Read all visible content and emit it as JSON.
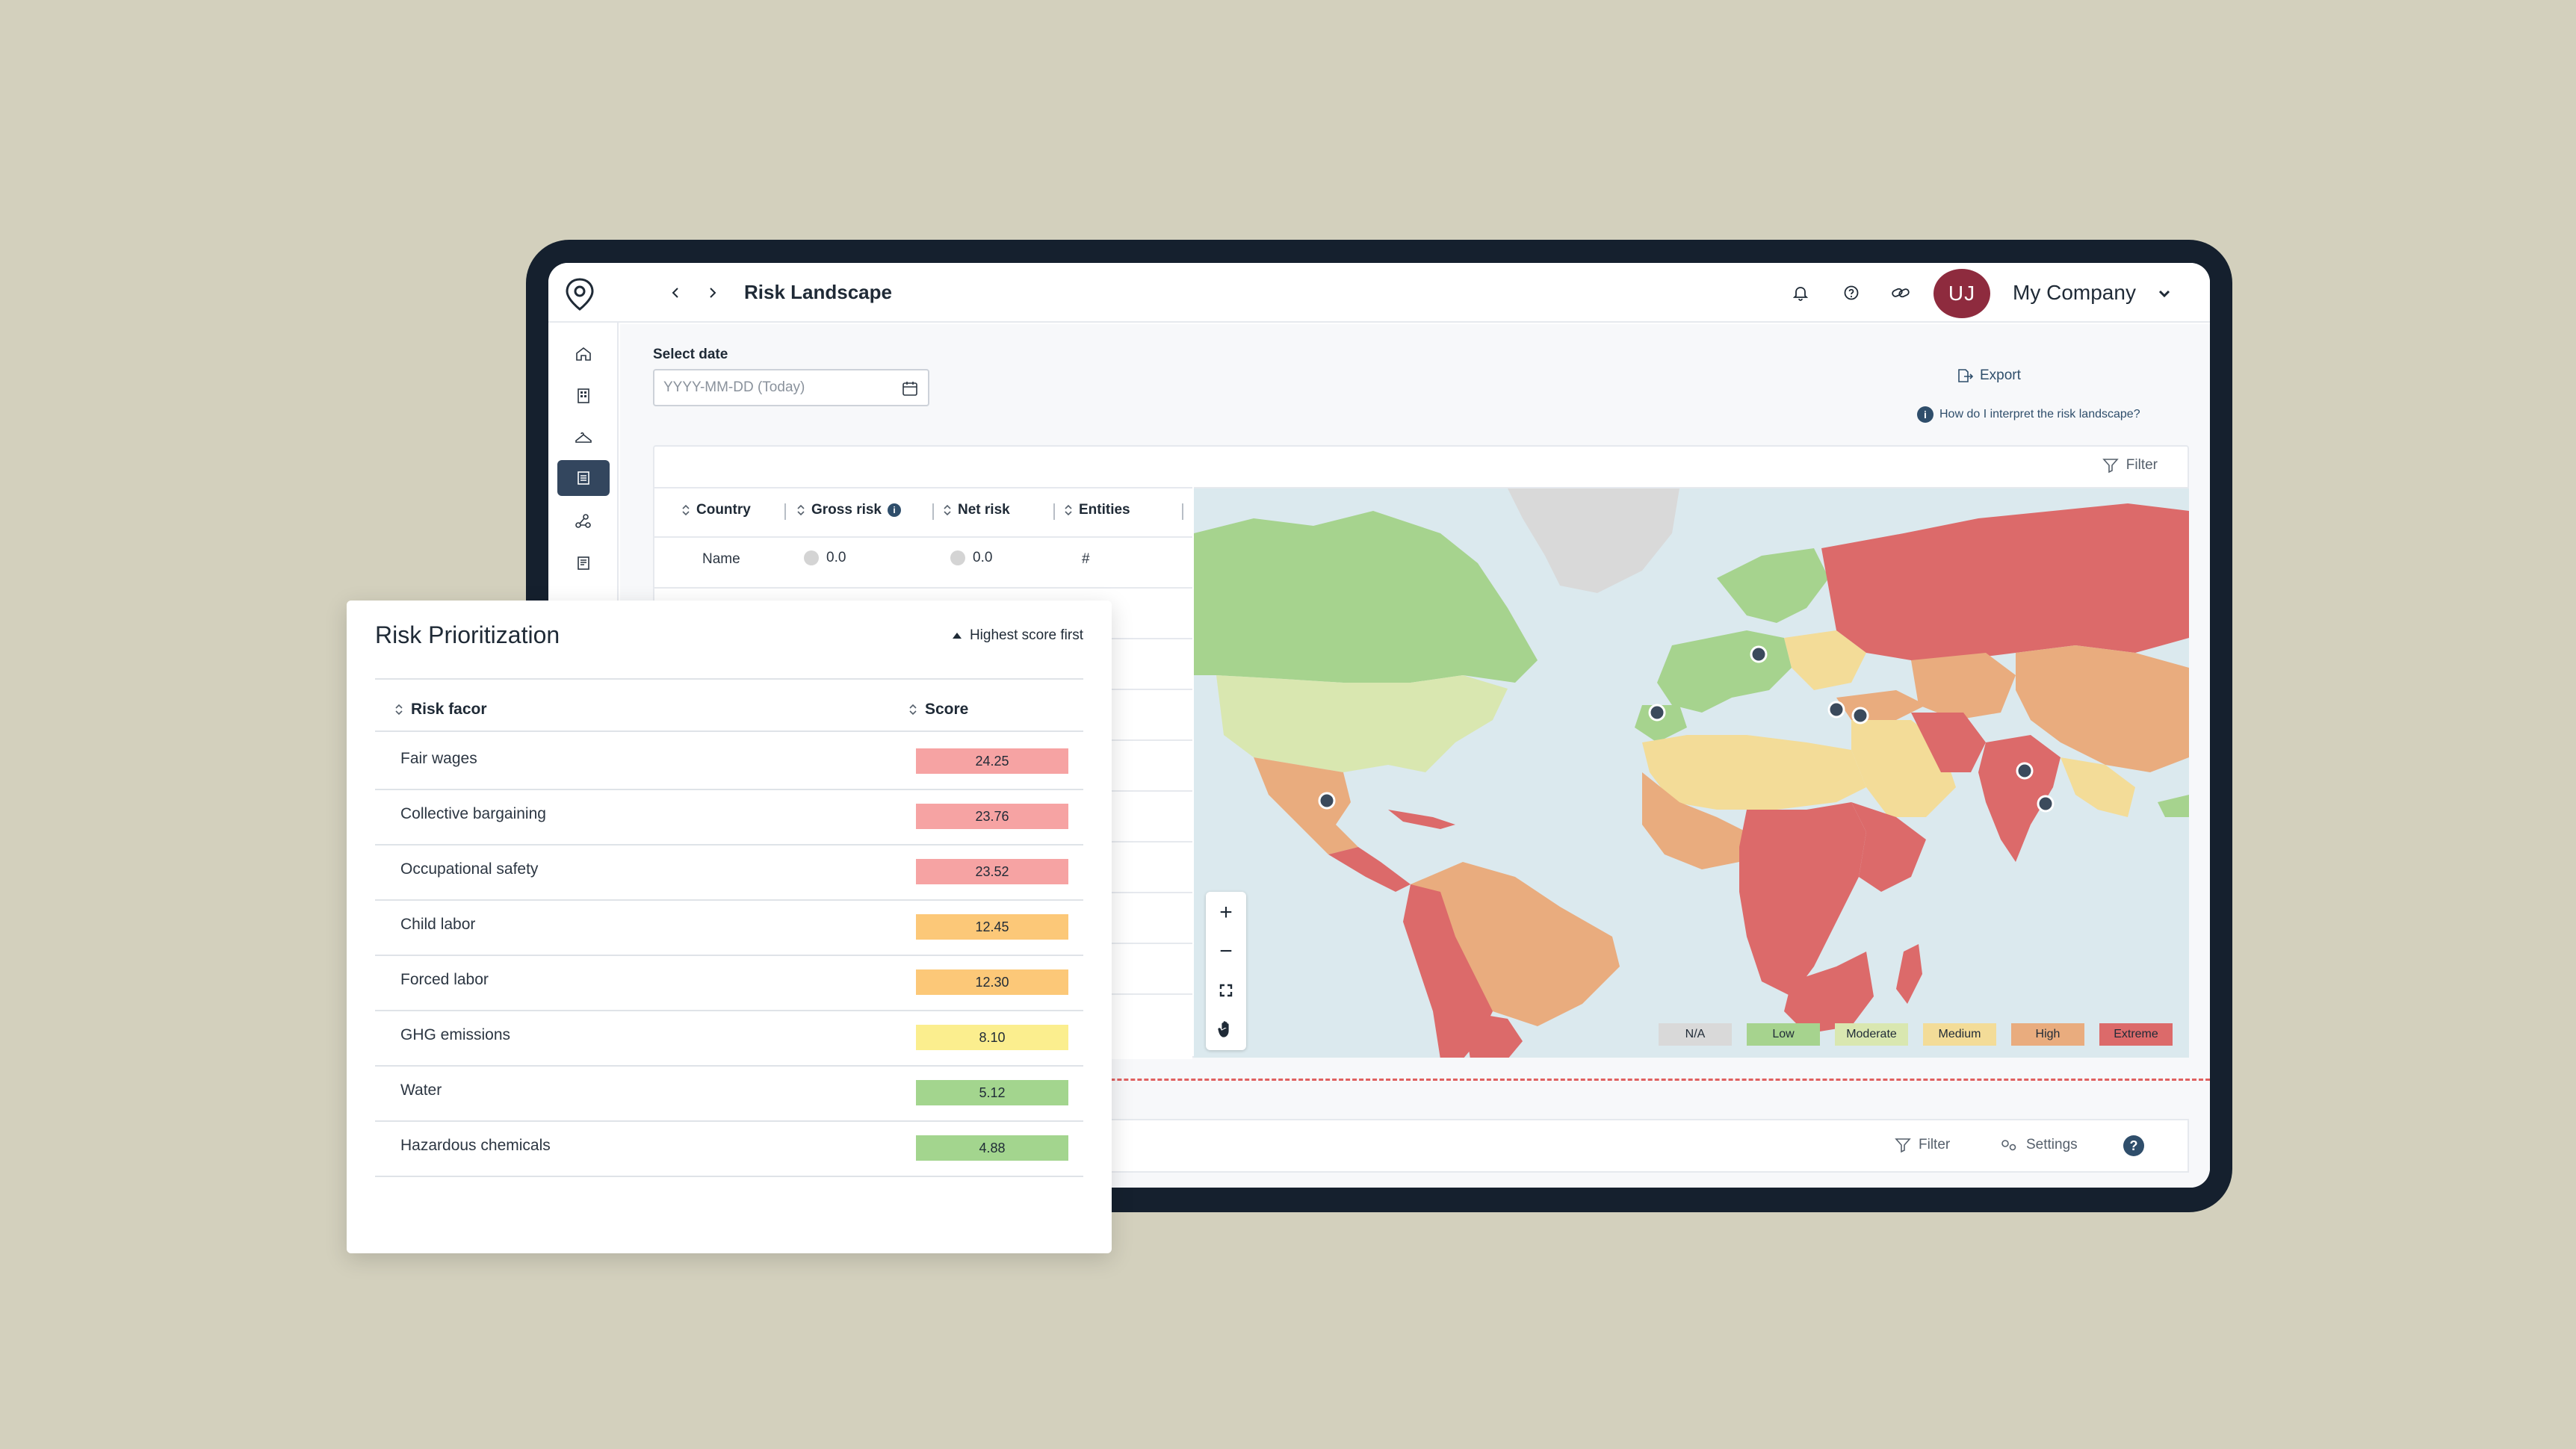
{
  "app": {
    "page_title": "Risk Landscape",
    "avatar_initials": "UJ",
    "company_name": "My Company"
  },
  "filters": {
    "select_date_label": "Select date",
    "date_placeholder": "YYYY-MM-DD (Today)",
    "export_label": "Export",
    "help_link": "How do I interpret the risk landscape?",
    "filter_label": "Filter"
  },
  "country_table": {
    "headers": [
      "Country",
      "Gross risk",
      "Net risk",
      "Entities"
    ],
    "first_row": {
      "name": "Name",
      "gross": "0.0",
      "net": "0.0",
      "entities": "#"
    }
  },
  "legend": [
    {
      "label": "N/A",
      "color": "#d9d9d9"
    },
    {
      "label": "Low",
      "color": "#a6d38e"
    },
    {
      "label": "Moderate",
      "color": "#d9e7b0"
    },
    {
      "label": "Medium",
      "color": "#f3dc98"
    },
    {
      "label": "High",
      "color": "#e9ac7e"
    },
    {
      "label": "Extreme",
      "color": "#dc6a6a"
    }
  ],
  "bottom_bar": {
    "filter_label": "Filter",
    "settings_label": "Settings",
    "help_glyph": "?"
  },
  "prioritization": {
    "title": "Risk Prioritization",
    "sort_label": "Highest score first",
    "col_factor": "Risk facor",
    "col_score": "Score",
    "rows": [
      {
        "factor": "Fair wages",
        "score": "24.25",
        "color": "#f6a3a3"
      },
      {
        "factor": "Collective bargaining",
        "score": "23.76",
        "color": "#f6a3a3"
      },
      {
        "factor": "Occupational safety",
        "score": "23.52",
        "color": "#f6a3a3"
      },
      {
        "factor": "Child labor",
        "score": "12.45",
        "color": "#fcc878"
      },
      {
        "factor": "Forced labor",
        "score": "12.30",
        "color": "#fcc878"
      },
      {
        "factor": "GHG emissions",
        "score": "8.10",
        "color": "#fbee8e"
      },
      {
        "factor": "Water",
        "score": "5.12",
        "color": "#a3d58e"
      },
      {
        "factor": "Hazardous chemicals",
        "score": "4.88",
        "color": "#a3d58e"
      }
    ]
  },
  "map_controls": [
    "zoom-in",
    "zoom-out",
    "fit",
    "pan"
  ],
  "colors": {
    "accent_dark": "#33465e",
    "avatar_bg": "#8e2b3e",
    "ocean": "#dbe9ee",
    "marker": "#3b4a5c"
  }
}
